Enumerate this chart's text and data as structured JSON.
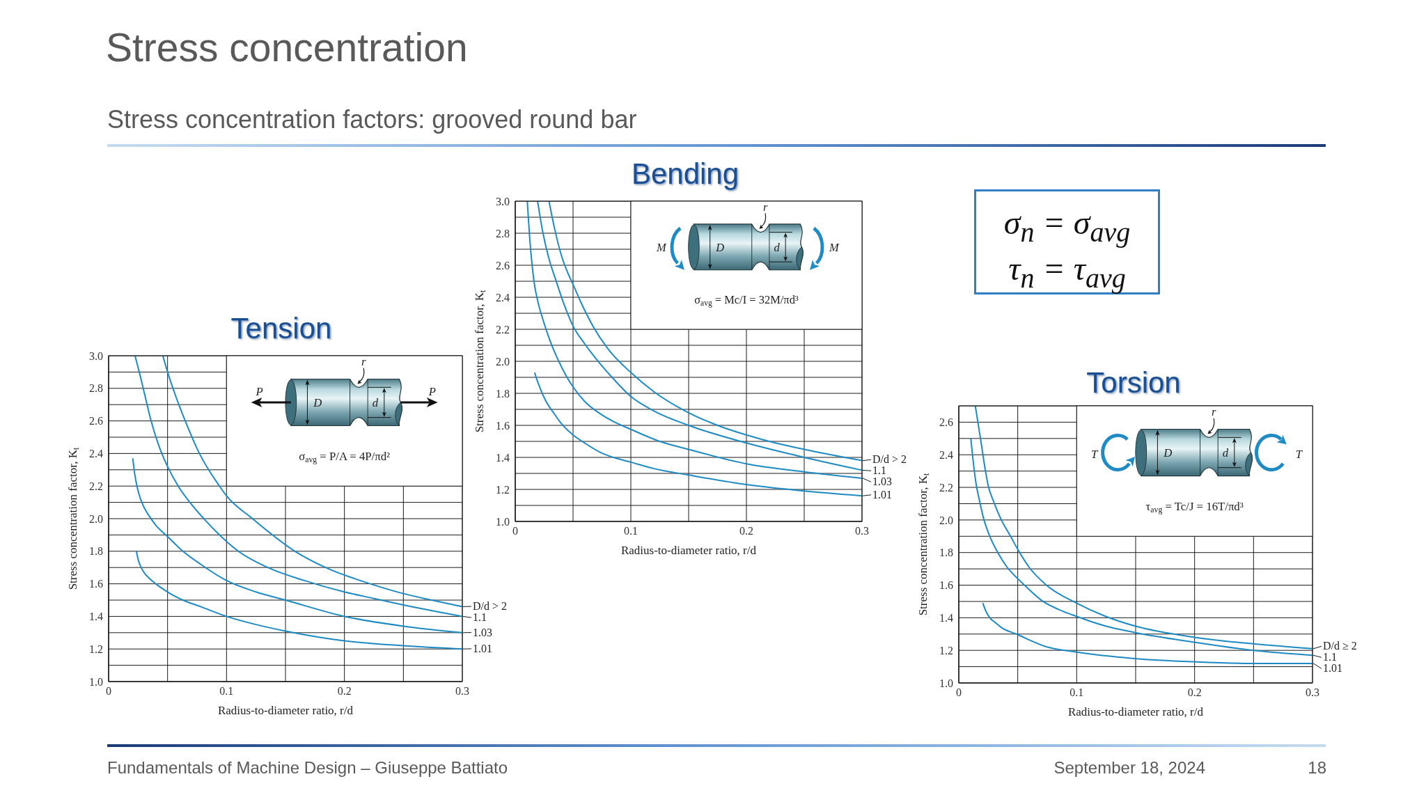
{
  "chart_data": [
    {
      "type": "other",
      "title": "Stress concentration",
      "subtitle": "Stress concentration factors: grooved round bar",
      "annotations": [
        "Fundamentals of Machine Design – Giuseppe Battiato",
        "September 18, 2024",
        "18"
      ]
    },
    {
      "type": "line",
      "title": "Tension",
      "xlabel": "Radius-to-diameter ratio, r/d",
      "ylabel": "Stress concentration factor, K$_{t}$",
      "xlim": [
        0,
        0.3
      ],
      "ylim": [
        1,
        3
      ],
      "xticks": [
        0,
        {
          "value": 0.05,
          "label": null
        },
        0.1,
        {
          "value": 0.15,
          "label": null
        },
        0.2,
        {
          "value": 0.25,
          "label": null
        },
        0.3
      ],
      "yticks": [
        {
          "value": 1,
          "label": "1.0"
        },
        {
          "value": 1.1,
          "label": null
        },
        1.2,
        {
          "value": 1.3,
          "label": null
        },
        1.4,
        {
          "value": 1.5,
          "label": null
        },
        1.6,
        {
          "value": 1.7,
          "label": null
        },
        1.8,
        {
          "value": 1.9,
          "label": null
        },
        {
          "value": 2,
          "label": "2.0"
        },
        {
          "value": 2.1,
          "label": null
        },
        2.2,
        {
          "value": 2.3,
          "label": null
        },
        2.4,
        {
          "value": 2.5,
          "label": null
        },
        2.6,
        {
          "value": 2.7,
          "label": null
        },
        2.8,
        {
          "value": 2.9,
          "label": null
        },
        {
          "value": 3,
          "label": "3.0"
        }
      ],
      "grid": true,
      "series": [
        {
          "name": "D/d > 2",
          "color": "#1d8ac4",
          "x": [
            0.046,
            0.05,
            0.057,
            0.065,
            0.077,
            0.094,
            0.1,
            0.122,
            0.158,
            0.184,
            0.222,
            0.25,
            0.274,
            0.3
          ],
          "values": [
            3.0,
            2.9,
            2.75,
            2.6,
            2.4,
            2.2,
            2.14,
            2.0,
            1.8,
            1.7,
            1.6,
            1.54,
            1.5,
            1.46
          ]
        },
        {
          "name": "1.1",
          "color": "#1d8ac4",
          "x": [
            0.0224,
            0.026,
            0.031,
            0.036,
            0.043,
            0.05,
            0.059,
            0.07,
            0.082,
            0.1,
            0.11,
            0.135,
            0.166,
            0.2,
            0.225,
            0.25,
            0.3
          ],
          "values": [
            3.0,
            2.9,
            2.75,
            2.6,
            2.44,
            2.32,
            2.2,
            2.09,
            1.99,
            1.86,
            1.8,
            1.7,
            1.62,
            1.55,
            1.51,
            1.47,
            1.4
          ]
        },
        {
          "name": "1.03",
          "color": "#1d8ac4",
          "x": [
            0.0205,
            0.022,
            0.025,
            0.03,
            0.035,
            0.04,
            0.05,
            0.063,
            0.078,
            0.1,
            0.125,
            0.15,
            0.2,
            0.25,
            0.3
          ],
          "values": [
            2.37,
            2.28,
            2.17,
            2.07,
            2.01,
            1.96,
            1.89,
            1.8,
            1.72,
            1.62,
            1.55,
            1.5,
            1.4,
            1.34,
            1.3
          ]
        },
        {
          "name": "1.01",
          "color": "#1d8ac4",
          "x": [
            0.0236,
            0.025,
            0.027,
            0.03,
            0.035,
            0.04,
            0.05,
            0.063,
            0.078,
            0.1,
            0.125,
            0.15,
            0.2,
            0.25,
            0.3
          ],
          "values": [
            1.8,
            1.75,
            1.71,
            1.67,
            1.63,
            1.6,
            1.55,
            1.5,
            1.46,
            1.4,
            1.35,
            1.31,
            1.25,
            1.22,
            1.2
          ]
        }
      ],
      "annotations": [
        "P",
        "P",
        "D",
        "d",
        "r",
        "σ$_{avg}$ = P/A = 4P/πd²"
      ]
    },
    {
      "type": "line",
      "title": "Bending",
      "xlabel": "Radius-to-diameter ratio, r/d",
      "ylabel": "Stress concentration factor, K$_{t}$",
      "xlim": [
        0,
        0.3
      ],
      "ylim": [
        1,
        3
      ],
      "xticks": [
        0,
        {
          "value": 0.05,
          "label": null
        },
        0.1,
        {
          "value": 0.15,
          "label": null
        },
        0.2,
        {
          "value": 0.25,
          "label": null
        },
        0.3
      ],
      "yticks": [
        {
          "value": 1,
          "label": "1.0"
        },
        {
          "value": 1.1,
          "label": null
        },
        1.2,
        {
          "value": 1.3,
          "label": null
        },
        1.4,
        {
          "value": 1.5,
          "label": null
        },
        1.6,
        {
          "value": 1.7,
          "label": null
        },
        1.8,
        {
          "value": 1.9,
          "label": null
        },
        {
          "value": 2,
          "label": "2.0"
        },
        {
          "value": 2.1,
          "label": null
        },
        2.2,
        {
          "value": 2.3,
          "label": null
        },
        2.4,
        {
          "value": 2.5,
          "label": null
        },
        2.6,
        {
          "value": 2.7,
          "label": null
        },
        2.8,
        {
          "value": 2.9,
          "label": null
        },
        {
          "value": 3,
          "label": "3.0"
        }
      ],
      "grid": true,
      "series": [
        {
          "name": "D/d > 2",
          "color": "#1d8ac4",
          "x": [
            0.0292,
            0.034,
            0.04,
            0.045,
            0.05,
            0.058,
            0.068,
            0.08,
            0.1,
            0.12,
            0.147,
            0.175,
            0.2,
            0.225,
            0.25,
            0.3
          ],
          "values": [
            3.0,
            2.83,
            2.66,
            2.56,
            2.48,
            2.35,
            2.21,
            2.08,
            1.93,
            1.81,
            1.69,
            1.6,
            1.54,
            1.49,
            1.45,
            1.38
          ]
        },
        {
          "name": "1.1",
          "color": "#1d8ac4",
          "x": [
            0.0193,
            0.024,
            0.0292,
            0.035,
            0.042,
            0.05,
            0.06,
            0.074,
            0.085,
            0.1,
            0.12,
            0.15,
            0.2,
            0.25,
            0.3
          ],
          "values": [
            3.0,
            2.8,
            2.64,
            2.51,
            2.36,
            2.22,
            2.11,
            1.98,
            1.89,
            1.78,
            1.69,
            1.6,
            1.49,
            1.4,
            1.32
          ]
        },
        {
          "name": "1.03",
          "color": "#1d8ac4",
          "x": [
            0.0104,
            0.0123,
            0.0162,
            0.02,
            0.024,
            0.03,
            0.037,
            0.044,
            0.05,
            0.06,
            0.074,
            0.086,
            0.1,
            0.125,
            0.15,
            0.2,
            0.25,
            0.3
          ],
          "values": [
            3.0,
            2.79,
            2.5,
            2.36,
            2.26,
            2.13,
            2.01,
            1.91,
            1.84,
            1.75,
            1.67,
            1.62,
            1.575,
            1.5,
            1.45,
            1.36,
            1.31,
            1.27
          ]
        },
        {
          "name": "1.01",
          "color": "#1d8ac4",
          "x": [
            0.0167,
            0.02,
            0.0266,
            0.033,
            0.04,
            0.05,
            0.06,
            0.074,
            0.085,
            0.1,
            0.12,
            0.15,
            0.2,
            0.25,
            0.3
          ],
          "values": [
            1.93,
            1.86,
            1.75,
            1.68,
            1.61,
            1.54,
            1.49,
            1.43,
            1.4,
            1.37,
            1.33,
            1.29,
            1.23,
            1.19,
            1.16
          ]
        }
      ],
      "annotations": [
        "M",
        "M",
        "D",
        "d",
        "r",
        "σ$_{avg}$ = Mc/I = 32M/πd³"
      ]
    },
    {
      "type": "other",
      "annotations": [
        "σ$_{n}$ = σ$_{avg}$",
        "τ$_{n}$ = τ$_{avg}$"
      ]
    },
    {
      "type": "line",
      "title": "Torsion",
      "xlabel": "Radius-to-diameter ratio, r/d",
      "ylabel": "Stress concentration factor, K$_{t}$",
      "xlim": [
        0,
        0.3
      ],
      "ylim": [
        1,
        2.7
      ],
      "xticks": [
        0,
        {
          "value": 0.05,
          "label": null
        },
        0.1,
        {
          "value": 0.15,
          "label": null
        },
        0.2,
        {
          "value": 0.25,
          "label": null
        },
        0.3
      ],
      "yticks": [
        {
          "value": 1,
          "label": "1.0"
        },
        {
          "value": 1.1,
          "label": null
        },
        1.2,
        {
          "value": 1.3,
          "label": null
        },
        1.4,
        {
          "value": 1.5,
          "label": null
        },
        1.6,
        {
          "value": 1.7,
          "label": null
        },
        1.8,
        {
          "value": 1.9,
          "label": null
        },
        {
          "value": 2,
          "label": "2.0"
        },
        {
          "value": 2.1,
          "label": null
        },
        2.2,
        {
          "value": 2.3,
          "label": null
        },
        2.4,
        {
          "value": 2.5,
          "label": null
        },
        2.6
      ],
      "grid": true,
      "series": [
        {
          "name": "D/d ≥ 2",
          "color": "#1d8ac4",
          "x": [
            0.014,
            0.0184,
            0.0224,
            0.0253,
            0.0292,
            0.0361,
            0.0439,
            0.05,
            0.0596,
            0.0743,
            0.1,
            0.124,
            0.149,
            0.2,
            0.25,
            0.3
          ],
          "values": [
            2.7,
            2.5,
            2.31,
            2.2,
            2.12,
            2.0,
            1.9,
            1.82,
            1.71,
            1.6,
            1.49,
            1.41,
            1.35,
            1.28,
            1.24,
            1.21
          ]
        },
        {
          "name": "1.1",
          "color": "#1d8ac4",
          "x": [
            0.0102,
            0.0116,
            0.0145,
            0.0175,
            0.0214,
            0.0263,
            0.0331,
            0.041,
            0.05,
            0.0557,
            0.0714,
            0.085,
            0.0992,
            0.124,
            0.149,
            0.2,
            0.25,
            0.3
          ],
          "values": [
            2.5,
            2.4,
            2.23,
            2.12,
            2.0,
            1.9,
            1.8,
            1.71,
            1.64,
            1.6,
            1.5,
            1.45,
            1.41,
            1.35,
            1.31,
            1.25,
            1.2,
            1.17
          ]
        },
        {
          "name": "1.01",
          "color": "#1d8ac4",
          "x": [
            0.0204,
            0.023,
            0.0263,
            0.031,
            0.0361,
            0.0488,
            0.0753,
            0.0992,
            0.149,
            0.2,
            0.25,
            0.3
          ],
          "values": [
            1.49,
            1.44,
            1.4,
            1.37,
            1.34,
            1.3,
            1.22,
            1.19,
            1.15,
            1.13,
            1.12,
            1.12
          ]
        }
      ],
      "annotations": [
        "T",
        "T",
        "D",
        "d",
        "r",
        "τ$_{avg}$ = Tc/J = 16T/πd³"
      ]
    }
  ]
}
